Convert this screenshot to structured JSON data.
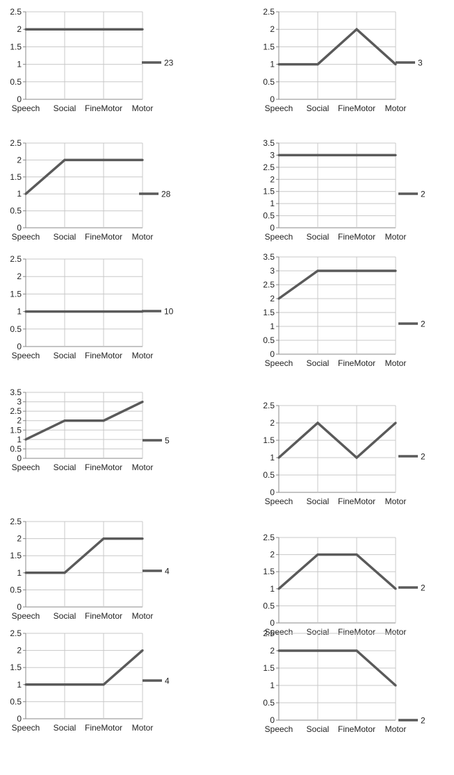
{
  "style": {
    "line_color": "#5a5a5a",
    "grid_color": "#c8c8c8",
    "axis_color": "#888888",
    "text_color": "#222222"
  },
  "chart_data": [
    {
      "type": "line",
      "categories": [
        "Speech",
        "Social",
        "FineMotor",
        "Motor"
      ],
      "ylim": [
        0,
        2.5
      ],
      "yticks": [
        "0",
        "0.5",
        "1",
        "1.5",
        "2",
        "2.5"
      ],
      "series": [
        {
          "name": "23",
          "values": [
            2,
            2,
            2,
            2
          ]
        }
      ],
      "legend": "right"
    },
    {
      "type": "line",
      "categories": [
        "Speech",
        "Social",
        "FineMotor",
        "Motor"
      ],
      "ylim": [
        0,
        2.5
      ],
      "yticks": [
        "0",
        "0.5",
        "1",
        "1.5",
        "2",
        "2.5"
      ],
      "series": [
        {
          "name": "3",
          "values": [
            1,
            1,
            2,
            1
          ]
        }
      ],
      "legend": "right"
    },
    {
      "type": "line",
      "categories": [
        "Speech",
        "Social",
        "FineMotor",
        "Motor"
      ],
      "ylim": [
        0,
        2.5
      ],
      "yticks": [
        "0",
        "0.5",
        "1",
        "1.5",
        "2",
        "2.5"
      ],
      "series": [
        {
          "name": "28",
          "values": [
            1,
            2,
            2,
            2
          ]
        }
      ],
      "legend": "right"
    },
    {
      "type": "line",
      "categories": [
        "Speech",
        "Social",
        "FineMotor",
        "Motor"
      ],
      "ylim": [
        0,
        3.5
      ],
      "yticks": [
        "0",
        "0.5",
        "1",
        "1.5",
        "2",
        "2.5",
        "3",
        "3.5"
      ],
      "series": [
        {
          "name": "2",
          "values": [
            3,
            3,
            3,
            3
          ]
        }
      ],
      "legend": "right"
    },
    {
      "type": "line",
      "categories": [
        "Speech",
        "Social",
        "FineMotor",
        "Motor"
      ],
      "ylim": [
        0,
        2.5
      ],
      "yticks": [
        "0",
        "0.5",
        "1",
        "1.5",
        "2",
        "2.5"
      ],
      "series": [
        {
          "name": "10",
          "values": [
            1,
            1,
            1,
            1
          ]
        }
      ],
      "legend": "right"
    },
    {
      "type": "line",
      "categories": [
        "Speech",
        "Social",
        "FineMotor",
        "Motor"
      ],
      "ylim": [
        0,
        3.5
      ],
      "yticks": [
        "0",
        "0.5",
        "1",
        "1.5",
        "2",
        "2.5",
        "3",
        "3.5"
      ],
      "series": [
        {
          "name": "2",
          "values": [
            2,
            3,
            3,
            3
          ]
        }
      ],
      "legend": "right"
    },
    {
      "type": "line",
      "categories": [
        "Speech",
        "Social",
        "FineMotor",
        "Motor"
      ],
      "ylim": [
        0,
        3.5
      ],
      "yticks": [
        "0",
        "0.5",
        "1",
        "1.5",
        "2",
        "2.5",
        "3",
        "3.5"
      ],
      "series": [
        {
          "name": "5",
          "values": [
            1,
            2,
            2,
            3
          ]
        }
      ],
      "legend": "right"
    },
    {
      "type": "line",
      "categories": [
        "Speech",
        "Social",
        "FineMotor",
        "Motor"
      ],
      "ylim": [
        0,
        2.5
      ],
      "yticks": [
        "0",
        "0.5",
        "1",
        "1.5",
        "2",
        "2.5"
      ],
      "series": [
        {
          "name": "2",
          "values": [
            1,
            2,
            1,
            2
          ]
        }
      ],
      "legend": "right"
    },
    {
      "type": "line",
      "categories": [
        "Speech",
        "Social",
        "FineMotor",
        "Motor"
      ],
      "ylim": [
        0,
        2.5
      ],
      "yticks": [
        "0",
        "0.5",
        "1",
        "1.5",
        "2",
        "2.5"
      ],
      "series": [
        {
          "name": "4",
          "values": [
            1,
            1,
            2,
            2
          ]
        }
      ],
      "legend": "right"
    },
    {
      "type": "line",
      "categories": [
        "Speech",
        "Social",
        "FineMotor",
        "Motor"
      ],
      "ylim": [
        0,
        2.5
      ],
      "yticks": [
        "0",
        "0.5",
        "1",
        "1.5",
        "2",
        "2.5"
      ],
      "series": [
        {
          "name": "2",
          "values": [
            1,
            2,
            2,
            1
          ]
        }
      ],
      "legend": "right"
    },
    {
      "type": "line",
      "categories": [
        "Speech",
        "Social",
        "FineMotor",
        "Motor"
      ],
      "ylim": [
        0,
        2.5
      ],
      "yticks": [
        "0",
        "0.5",
        "1",
        "1.5",
        "2",
        "2.5"
      ],
      "series": [
        {
          "name": "4",
          "values": [
            1,
            1,
            1,
            2
          ]
        }
      ],
      "legend": "right"
    },
    {
      "type": "line",
      "categories": [
        "Speech",
        "Social",
        "FineMotor",
        "Motor"
      ],
      "ylim": [
        0,
        2.5
      ],
      "yticks": [
        "0",
        "0.5",
        "1",
        "1.5",
        "2",
        "2.5"
      ],
      "series": [
        {
          "name": "2",
          "values": [
            2,
            2,
            2,
            1
          ]
        }
      ],
      "legend": "right"
    }
  ]
}
